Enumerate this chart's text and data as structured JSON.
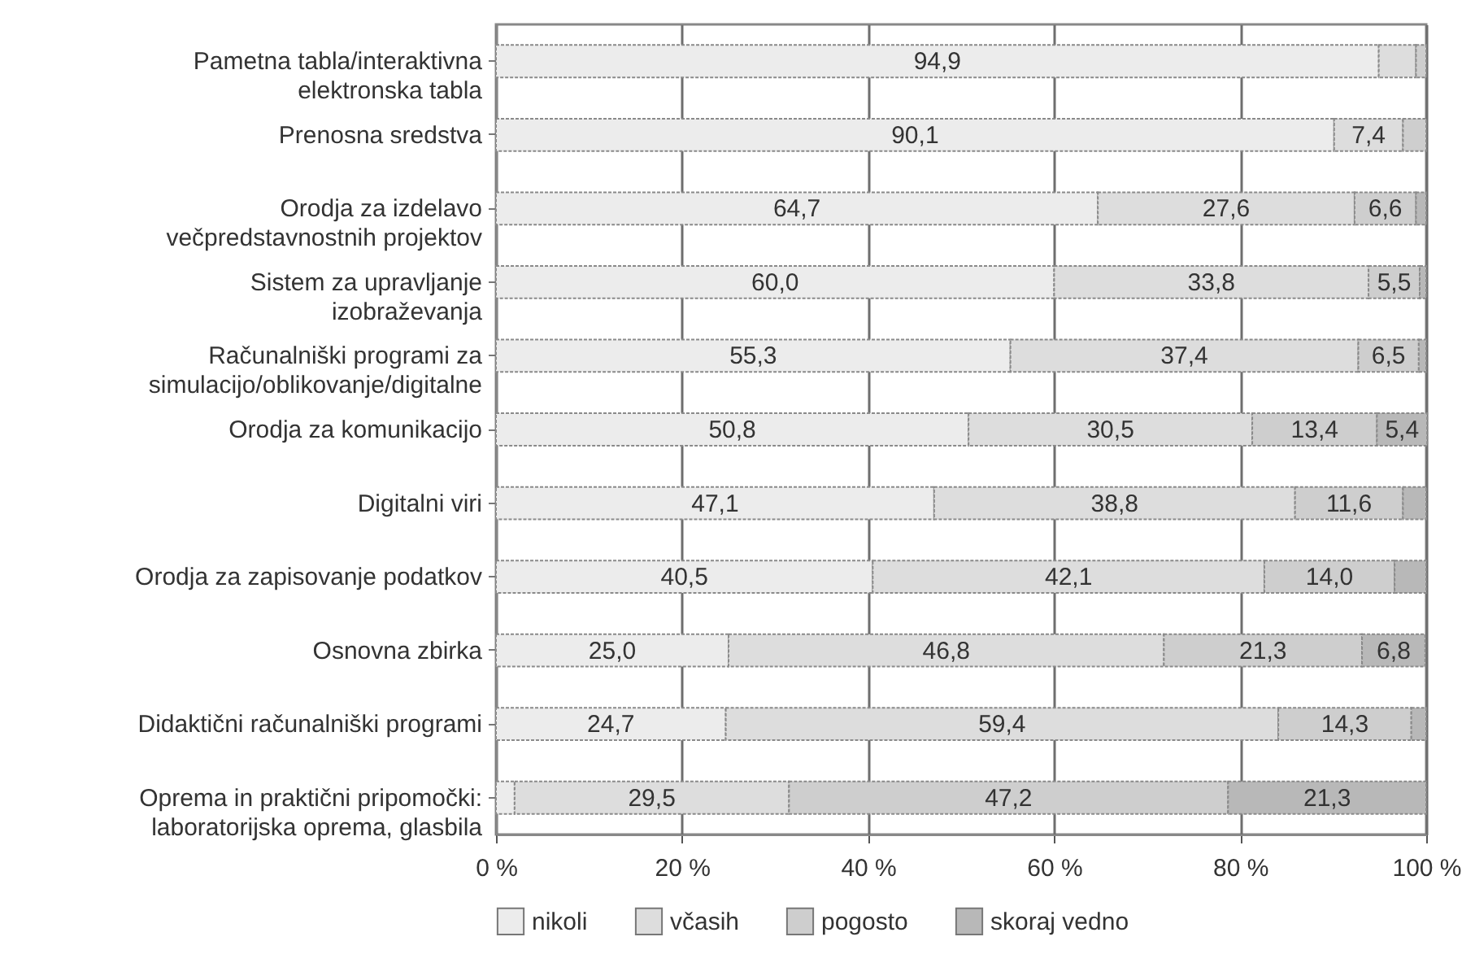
{
  "chart_data": {
    "type": "bar",
    "orientation": "horizontal",
    "stacked": true,
    "categories": [
      "Pametna tabla/interaktivna elektronska tabla",
      "Prenosna sredstva",
      "Orodja za izdelavo večpredstavnostnih projektov",
      "Sistem za upravljanje izobraževanja",
      "Računalniški programi za simulacijo/oblikovanje/digitalne",
      "Orodja za komunikacijo",
      "Digitalni viri",
      "Orodja za zapisovanje podatkov",
      "Osnovna zbirka",
      "Didaktični računalniški programi",
      "Oprema in praktični pripomočki: laboratorijska oprema, glasbila"
    ],
    "series": [
      {
        "name": "nikoli",
        "color": "#ececec",
        "values": [
          94.9,
          90.1,
          64.7,
          60.0,
          55.3,
          50.8,
          47.1,
          40.5,
          25.0,
          24.7,
          2.0
        ],
        "value_labels": [
          "94,9",
          "90,1",
          "64,7",
          "60,0",
          "55,3",
          "50,8",
          "47,1",
          "40,5",
          "25,0",
          "24,7",
          null
        ]
      },
      {
        "name": "včasih",
        "color": "#dddddd",
        "values": [
          4.0,
          7.4,
          27.6,
          33.8,
          37.4,
          30.5,
          38.8,
          42.1,
          46.8,
          59.4,
          29.5
        ],
        "value_labels": [
          null,
          "7,4",
          "27,6",
          "33,8",
          "37,4",
          "30,5",
          "38,8",
          "42,1",
          "46,8",
          "59,4",
          "29,5"
        ]
      },
      {
        "name": "pogosto",
        "color": "#cecece",
        "values": [
          1.1,
          2.5,
          6.6,
          5.5,
          6.5,
          13.4,
          11.6,
          14.0,
          21.3,
          14.3,
          47.2
        ],
        "value_labels": [
          null,
          null,
          "6,6",
          "5,5",
          "6,5",
          "13,4",
          "11,6",
          "14,0",
          "21,3",
          "14,3",
          "47,2"
        ]
      },
      {
        "name": "skoraj vedno",
        "color": "#b8b8b8",
        "values": [
          null,
          null,
          1.1,
          0.7,
          0.8,
          5.4,
          2.5,
          3.4,
          6.8,
          1.6,
          21.3
        ],
        "value_labels": [
          null,
          null,
          null,
          null,
          null,
          "5,4",
          null,
          null,
          "6,8",
          null,
          "21,3"
        ]
      }
    ],
    "xlim": [
      0,
      100
    ],
    "xticks": [
      {
        "value": 0,
        "label": "0 %"
      },
      {
        "value": 20,
        "label": "20 %"
      },
      {
        "value": 40,
        "label": "40 %"
      },
      {
        "value": 60,
        "label": "60 %"
      },
      {
        "value": 80,
        "label": "80 %"
      },
      {
        "value": 100,
        "label": "100 %"
      }
    ],
    "grid": "x",
    "legend": "bottom"
  }
}
